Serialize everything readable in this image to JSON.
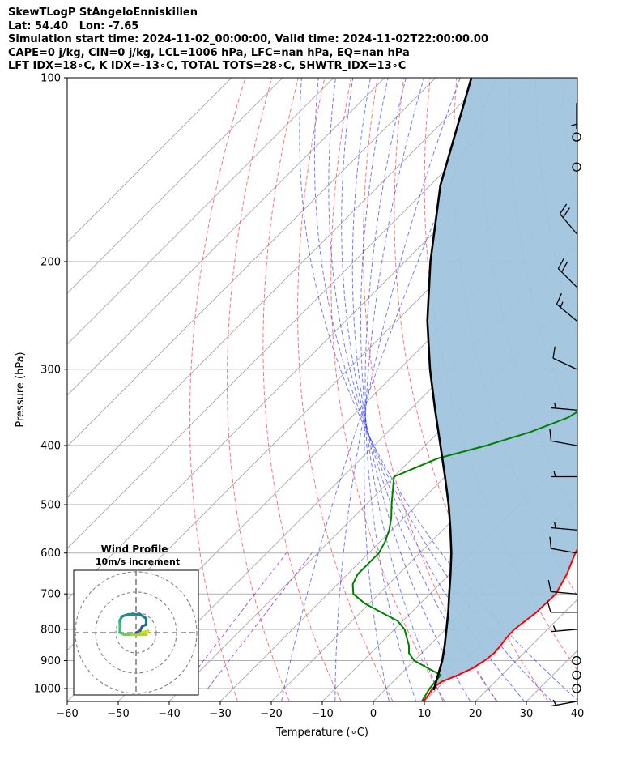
{
  "header": {
    "line1": "SkewTLogP StAngeloEnniskillen",
    "line2": "Lat: 54.40   Lon: -7.65",
    "line3": "Simulation start time: 2024-11-02_00:00:00, Valid time: 2024-11-02T22:00:00.00",
    "line4": "CAPE=0 j/kg, CIN=0 j/kg, LCL=1006 hPa, LFC=nan hPa, EQ=nan hPa",
    "line5": "LFT IDX=18∘C, K IDX=-13∘C, TOTAL TOTS=28∘C, SHWTR_IDX=13∘C"
  },
  "inset": {
    "title": "Wind Profile",
    "subtitle": "10m/s increment"
  },
  "chart_data": {
    "type": "line",
    "subtype": "skew-T log-P",
    "xlabel": "Temperature (∘C)",
    "ylabel": "Pressure (hPa)",
    "x_ticks": [
      -60,
      -50,
      -40,
      -30,
      -20,
      -10,
      0,
      10,
      20,
      30,
      40
    ],
    "y_ticks": [
      100,
      200,
      300,
      400,
      500,
      600,
      700,
      800,
      900,
      1000
    ],
    "xlim": [
      -60,
      40
    ],
    "ylim": [
      1050,
      100
    ],
    "grid": true,
    "colors": {
      "temperature": "#ff0000",
      "dewpoint": "#008000",
      "parcel": "#000000",
      "fill": "#a0c4de",
      "dry_adiabats": "#ff4444",
      "moist_adiabats": "#3344ff",
      "mixing_ratio": "#9933cc"
    },
    "series": [
      {
        "role": "temperature",
        "points": [
          [
            1050,
            9.8
          ],
          [
            1020,
            9.5
          ],
          [
            1000,
            9.0
          ],
          [
            975,
            9.5
          ],
          [
            950,
            11.5
          ],
          [
            925,
            13.0
          ],
          [
            900,
            13.8
          ],
          [
            875,
            14.2
          ],
          [
            850,
            14.0
          ],
          [
            825,
            13.6
          ],
          [
            800,
            13.5
          ],
          [
            775,
            14.0
          ],
          [
            750,
            14.5
          ],
          [
            725,
            14.6
          ],
          [
            700,
            14.7
          ],
          [
            650,
            13.0
          ],
          [
            600,
            10.5
          ],
          [
            550,
            8.5
          ],
          [
            500,
            7.0
          ],
          [
            450,
            5.0
          ],
          [
            400,
            3.5
          ],
          [
            350,
            2.0
          ],
          [
            320,
            1.0
          ],
          [
            300,
            0.5
          ],
          [
            270,
            0.5
          ],
          [
            240,
            0.5
          ],
          [
            220,
            2.0
          ],
          [
            200,
            5.0
          ],
          [
            185,
            9.0
          ],
          [
            175,
            13.0
          ],
          [
            165,
            17.0
          ],
          [
            155,
            20.0
          ],
          [
            145,
            24.0
          ],
          [
            135,
            27.0
          ],
          [
            125,
            31.0
          ],
          [
            115,
            34.0
          ],
          [
            105,
            38.0
          ],
          [
            100,
            39.5
          ]
        ]
      },
      {
        "role": "dewpoint",
        "points": [
          [
            1050,
            9.5
          ],
          [
            1000,
            8.5
          ],
          [
            950,
            8.0
          ],
          [
            925,
            4.0
          ],
          [
            900,
            0.0
          ],
          [
            875,
            -2.5
          ],
          [
            850,
            -4.0
          ],
          [
            825,
            -6.0
          ],
          [
            800,
            -8.0
          ],
          [
            775,
            -11.0
          ],
          [
            750,
            -16.0
          ],
          [
            725,
            -21.0
          ],
          [
            700,
            -25.0
          ],
          [
            675,
            -27.0
          ],
          [
            650,
            -28.0
          ],
          [
            600,
            -28.0
          ],
          [
            575,
            -29.0
          ],
          [
            550,
            -30.5
          ],
          [
            525,
            -32.5
          ],
          [
            500,
            -35.0
          ],
          [
            450,
            -40.0
          ],
          [
            420,
            -35.0
          ],
          [
            400,
            -28.0
          ],
          [
            380,
            -22.0
          ],
          [
            360,
            -17.5
          ],
          [
            340,
            -15.5
          ],
          [
            320,
            -13.5
          ],
          [
            300,
            -11.5
          ],
          [
            280,
            -8.5
          ],
          [
            260,
            -6.5
          ],
          [
            240,
            -5.5
          ],
          [
            230,
            -5.5
          ],
          [
            220,
            -5.0
          ],
          [
            210,
            -4.5
          ],
          [
            200,
            -4.0
          ],
          [
            190,
            -3.5
          ],
          [
            180,
            -4.0
          ],
          [
            170,
            -5.0
          ],
          [
            160,
            -1.0
          ],
          [
            150,
            3.0
          ],
          [
            140,
            7.0
          ],
          [
            130,
            10.0
          ],
          [
            120,
            12.0
          ],
          [
            110,
            14.0
          ],
          [
            100,
            18.0
          ]
        ]
      },
      {
        "role": "parcel",
        "points": [
          [
            1006,
            9.6
          ],
          [
            950,
            7.5
          ],
          [
            900,
            5.5
          ],
          [
            850,
            3.0
          ],
          [
            800,
            0.2
          ],
          [
            750,
            -2.8
          ],
          [
            700,
            -6.2
          ],
          [
            650,
            -9.8
          ],
          [
            600,
            -13.8
          ],
          [
            550,
            -18.5
          ],
          [
            500,
            -23.8
          ],
          [
            450,
            -30.0
          ],
          [
            400,
            -37.0
          ],
          [
            350,
            -45.0
          ],
          [
            300,
            -54.0
          ],
          [
            250,
            -64.0
          ],
          [
            200,
            -75.0
          ],
          [
            150,
            -88.0
          ],
          [
            100,
            -103.0
          ]
        ]
      }
    ],
    "wind_barbs": [
      {
        "pressure": 1050,
        "calm": false,
        "speed_ms": 5,
        "dir_deg": 260
      },
      {
        "pressure": 1000,
        "calm": true
      },
      {
        "pressure": 950,
        "calm": true
      },
      {
        "pressure": 900,
        "calm": true
      },
      {
        "pressure": 800,
        "speed_ms": 5,
        "dir_deg": 265
      },
      {
        "pressure": 750,
        "speed_ms": 10,
        "dir_deg": 270
      },
      {
        "pressure": 700,
        "speed_ms": 10,
        "dir_deg": 275
      },
      {
        "pressure": 600,
        "speed_ms": 10,
        "dir_deg": 280
      },
      {
        "pressure": 550,
        "speed_ms": 5,
        "dir_deg": 275
      },
      {
        "pressure": 450,
        "speed_ms": 5,
        "dir_deg": 270
      },
      {
        "pressure": 400,
        "speed_ms": 10,
        "dir_deg": 280
      },
      {
        "pressure": 350,
        "speed_ms": 5,
        "dir_deg": 275
      },
      {
        "pressure": 300,
        "speed_ms": 10,
        "dir_deg": 295
      },
      {
        "pressure": 250,
        "speed_ms": 15,
        "dir_deg": 310
      },
      {
        "pressure": 220,
        "speed_ms": 20,
        "dir_deg": 315
      },
      {
        "pressure": 180,
        "speed_ms": 20,
        "dir_deg": 320
      },
      {
        "pressure": 140,
        "calm": true
      },
      {
        "pressure": 125,
        "calm": true
      },
      {
        "pressure": 110,
        "speed_ms": 5,
        "dir_deg": 180
      }
    ],
    "hodograph": {
      "rings_ms": [
        10,
        20,
        30
      ],
      "points": [
        [
          2,
          0
        ],
        [
          6,
          1
        ],
        [
          5,
          -1
        ],
        [
          2,
          -1
        ],
        [
          -3,
          -1
        ],
        [
          -6,
          -1
        ],
        [
          -8,
          0
        ],
        [
          -8,
          2
        ],
        [
          -8,
          6
        ],
        [
          -7,
          8
        ],
        [
          -4,
          9
        ],
        [
          2,
          9
        ],
        [
          5,
          7
        ],
        [
          5,
          4
        ],
        [
          3,
          3
        ],
        [
          2,
          1
        ],
        [
          0,
          0
        ]
      ]
    }
  }
}
